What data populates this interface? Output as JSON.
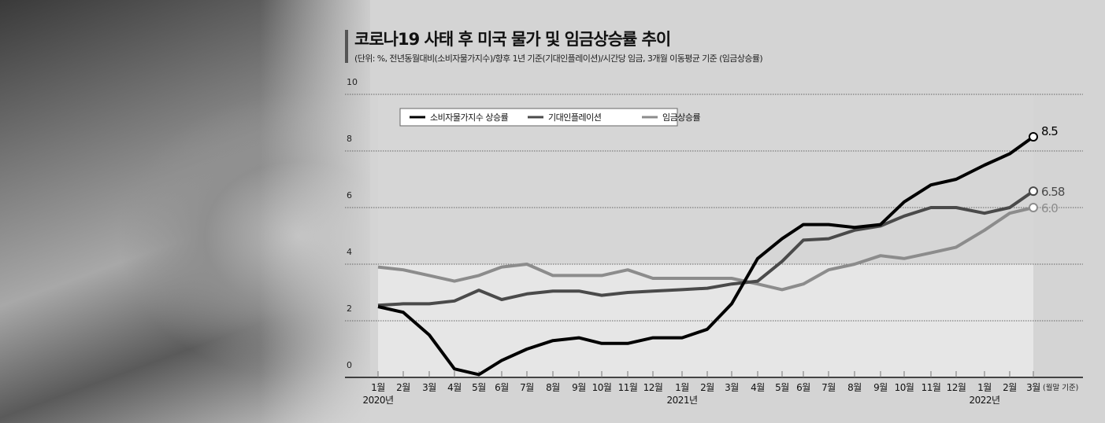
{
  "chart_data": {
    "type": "line",
    "title": "코로나19 사태 후 미국 물가 및 임금상승률 추이",
    "subtitle": "(단위: %, 전년동월대비(소비자물가지수)/향후 1년 기준(기대인플레이션)/시간당 임금, 3개월 이동평균 기준 (임금상승률)",
    "categories": [
      "1월",
      "2월",
      "3월",
      "4월",
      "5월",
      "6월",
      "7월",
      "8월",
      "9월",
      "10월",
      "11월",
      "12월",
      "1월",
      "2월",
      "3월",
      "4월",
      "5월",
      "6월",
      "7월",
      "8월",
      "9월",
      "10월",
      "11월",
      "12월",
      "1월",
      "2월",
      "3월"
    ],
    "year_labels": [
      {
        "label": "2020년",
        "index": 0
      },
      {
        "label": "2021년",
        "index": 12
      },
      {
        "label": "2022년",
        "index": 24
      }
    ],
    "x_note": "(월말 기준)",
    "ylim": [
      0,
      10
    ],
    "yticks": [
      "0",
      "2",
      "4",
      "6",
      "8",
      "10"
    ],
    "grid": true,
    "legend_position": "top-left",
    "series": [
      {
        "name": "소비자물가지수 상승률",
        "color": "#000000",
        "end_label": "8.5",
        "values": [
          2.5,
          2.3,
          1.5,
          0.3,
          0.1,
          0.6,
          1.0,
          1.3,
          1.4,
          1.2,
          1.2,
          1.4,
          1.4,
          1.7,
          2.6,
          4.2,
          4.9,
          5.4,
          5.4,
          5.3,
          5.4,
          6.2,
          6.8,
          7.0,
          7.5,
          7.9,
          8.5
        ]
      },
      {
        "name": "기대인플레이션",
        "color": "#4a4a4a",
        "end_label": "6.58",
        "values": [
          2.55,
          2.6,
          2.6,
          2.7,
          3.08,
          2.75,
          2.95,
          3.05,
          3.05,
          2.9,
          3.0,
          3.05,
          3.1,
          3.15,
          3.3,
          3.4,
          4.1,
          4.85,
          4.9,
          5.2,
          5.35,
          5.7,
          6.0,
          6.0,
          5.8,
          6.0,
          6.58
        ]
      },
      {
        "name": "임금상승률",
        "color": "#8c8c8c",
        "end_label": "6.0",
        "values": [
          3.9,
          3.8,
          3.6,
          3.4,
          3.6,
          3.9,
          4.0,
          3.6,
          3.6,
          3.6,
          3.8,
          3.5,
          3.5,
          3.5,
          3.5,
          3.3,
          3.1,
          3.3,
          3.8,
          4.0,
          4.3,
          4.2,
          4.4,
          4.6,
          5.2,
          5.8,
          6.0
        ]
      }
    ]
  }
}
